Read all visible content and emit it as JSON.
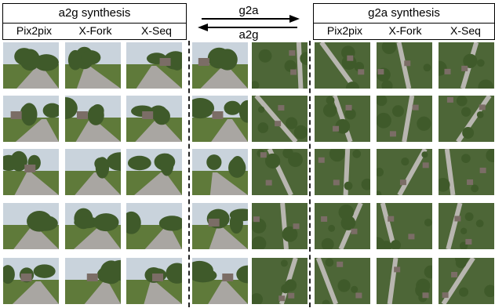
{
  "header": {
    "a2g_title": "a2g synthesis",
    "g2a_title": "g2a synthesis",
    "arrow_top": "g2a",
    "arrow_bottom": "a2g",
    "a2g_columns": [
      "Pix2pix",
      "X-Fork",
      "X-Seq"
    ],
    "g2a_columns": [
      "Pix2pix",
      "X-Fork",
      "X-Seq"
    ]
  },
  "colors": {
    "sky": "#c9d3dc",
    "road": "#a9a6a2",
    "grass": "#5f7a3a",
    "tree": "#3f5a2a",
    "aerial_green": "#4d6637",
    "aerial_road": "#b8b6b0",
    "roof": "#7b6d66"
  }
}
